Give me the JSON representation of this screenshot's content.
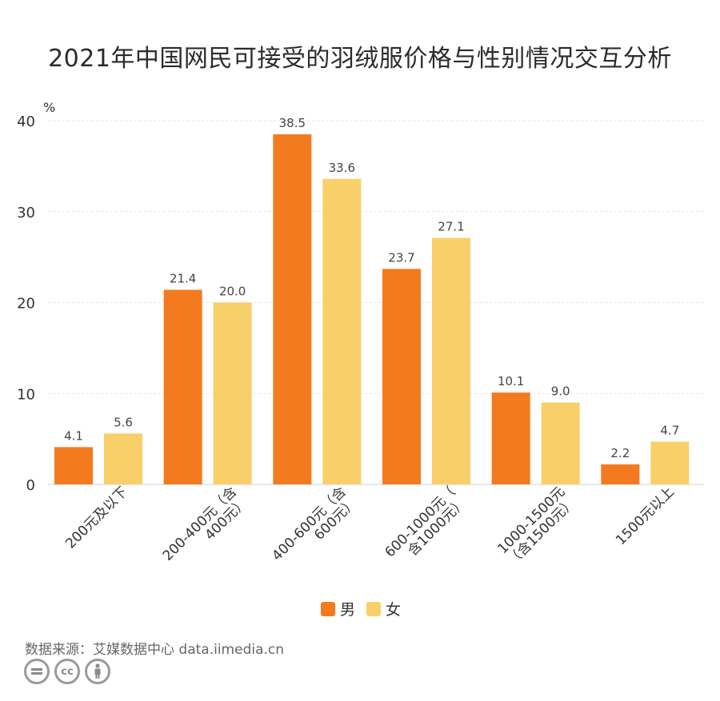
{
  "chart_data": {
    "type": "bar",
    "title": "2021年中国网民可接受的羽绒服价格与性别情况交互分析",
    "ylabel": "%",
    "ylim": [
      0,
      40
    ],
    "yticks": [
      0,
      10,
      20,
      30,
      40
    ],
    "grid": true,
    "legend_position": "bottom",
    "categories": [
      "200元及以下",
      "200-400元（含400元）",
      "400-600元（含600元）",
      "600-1000元（含1000元）",
      "1000-1500元（含1500元）",
      "1500元以上"
    ],
    "category_label_lines": [
      [
        "200元及以下"
      ],
      [
        "200-400元（含",
        "400元）"
      ],
      [
        "400-600元（含",
        "600元）"
      ],
      [
        "600-1000元（",
        "含1000元）"
      ],
      [
        "1000-1500元",
        "（含1500元）"
      ],
      [
        "1500元以上"
      ]
    ],
    "series": [
      {
        "name": "男",
        "color": "#f47a20",
        "values": [
          4.1,
          21.4,
          38.5,
          23.7,
          10.1,
          2.2
        ]
      },
      {
        "name": "女",
        "color": "#f9cf6a",
        "values": [
          5.6,
          20.0,
          33.6,
          27.1,
          9.0,
          4.7
        ]
      }
    ]
  },
  "source": "数据来源：艾媒数据中心 data.iimedia.cn",
  "license_icons": [
    "equals-icon",
    "cc-icon",
    "person-icon"
  ]
}
